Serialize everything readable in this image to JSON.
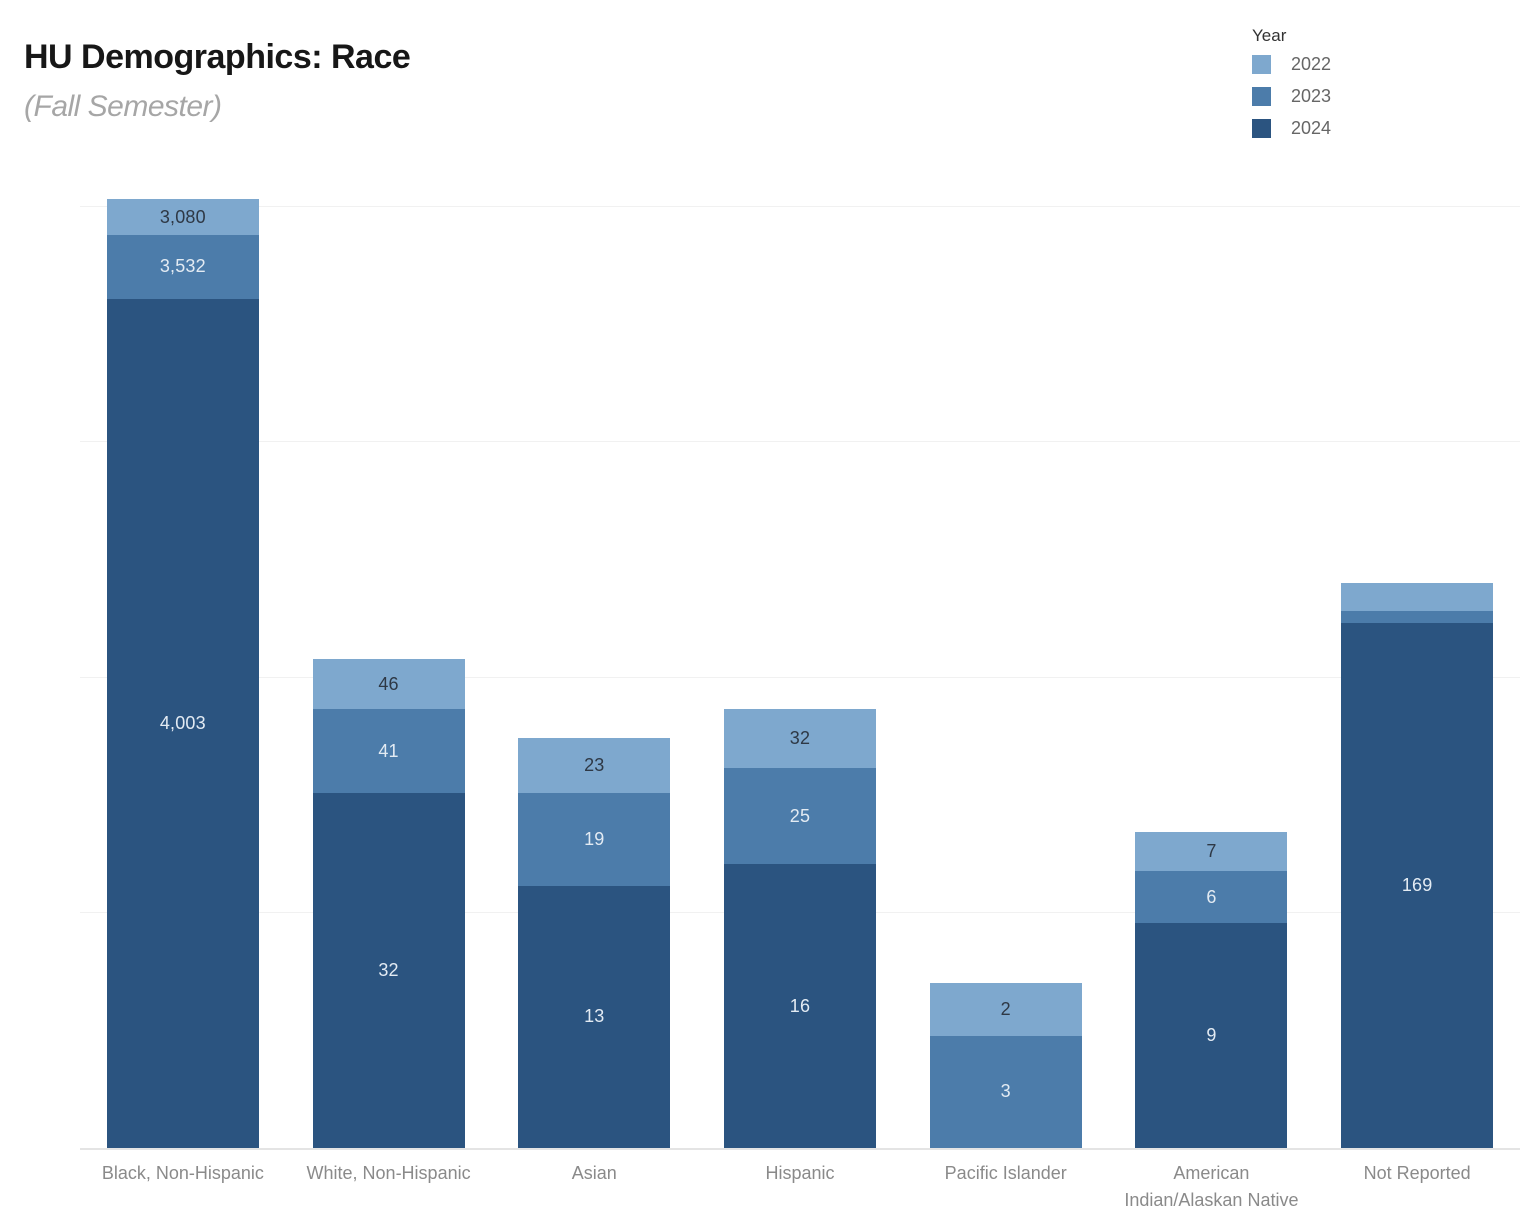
{
  "header": {
    "title": "HU Demographics: Race",
    "subtitle": "(Fall Semester)"
  },
  "legend": {
    "title": "Year",
    "items": [
      {
        "label": "2022",
        "color": "#7EA8CE"
      },
      {
        "label": "2023",
        "color": "#4C7CAA"
      },
      {
        "label": "2024",
        "color": "#2B5480"
      }
    ]
  },
  "chart_data": {
    "type": "bar",
    "stacked": true,
    "title": "HU Demographics: Race",
    "subtitle": "(Fall Semester)",
    "xlabel": "",
    "ylabel": "",
    "y_scale": "log10",
    "y_domain": [
      1,
      12000
    ],
    "gridlines": "horizontal at powers of 10, unlabeled",
    "legend_position": "top-right",
    "stack_order_bottom_to_top": [
      "2024",
      "2023",
      "2022"
    ],
    "categories": [
      "Black, Non-Hispanic",
      "White, Non-Hispanic",
      "Asian",
      "Hispanic",
      "Pacific Islander",
      "American\nIndian/Alaskan Native",
      "Not Reported"
    ],
    "series": [
      {
        "name": "2022",
        "color": "#7EA8CE",
        "values": [
          3080,
          46,
          23,
          32,
          2,
          7,
          58
        ],
        "labels": [
          "3,080",
          "46",
          "23",
          "32",
          "2",
          "7",
          ""
        ]
      },
      {
        "name": "2023",
        "color": "#4C7CAA",
        "values": [
          3532,
          41,
          19,
          25,
          3,
          6,
          22
        ],
        "labels": [
          "3,532",
          "41",
          "19",
          "25",
          "3",
          "6",
          ""
        ]
      },
      {
        "name": "2024",
        "color": "#2B5480",
        "values": [
          4003,
          32,
          13,
          16,
          0,
          9,
          169
        ],
        "labels": [
          "4,003",
          "32",
          "13",
          "16",
          "",
          "9",
          "169"
        ]
      }
    ],
    "note": "Not Reported 2022/2023 segments are unlabeled in the chart; values 58 and 22 are estimated from the log scale.",
    "label_colors": {
      "on_light_segment": "#2E3845",
      "on_dark_segment": "#E3EBF3"
    }
  }
}
